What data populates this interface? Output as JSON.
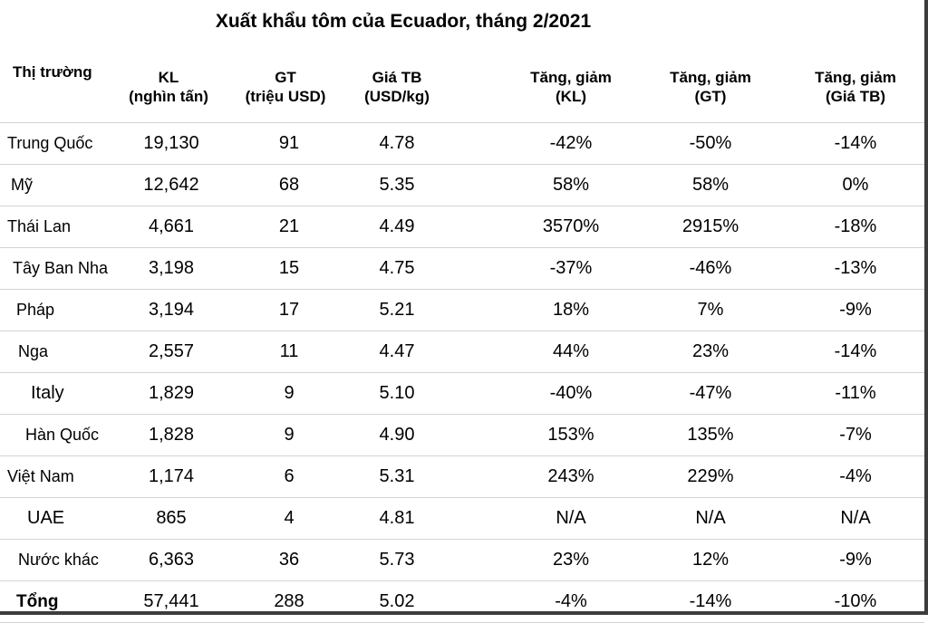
{
  "title": "Xuất khẩu tôm của Ecuador, tháng 2/2021",
  "headers": [
    [
      "Thị trường",
      ""
    ],
    [
      "KL",
      "(nghìn tấn)"
    ],
    [
      "GT",
      "(triệu USD)"
    ],
    [
      "Giá TB",
      "(USD/kg)"
    ],
    [
      "Tăng, giảm",
      "(KL)"
    ],
    [
      "Tăng, giảm",
      "(GT)"
    ],
    [
      "Tăng, giảm",
      "(Giá TB)"
    ]
  ],
  "rows": [
    {
      "market": "Trung Quốc",
      "kl": "19,130",
      "gt": "91",
      "gia": "4.78",
      "d_kl": "-42%",
      "d_gt": "-50%",
      "d_gia": "-14%"
    },
    {
      "market": "Mỹ",
      "kl": "12,642",
      "gt": "68",
      "gia": "5.35",
      "d_kl": "58%",
      "d_gt": "58%",
      "d_gia": "0%"
    },
    {
      "market": "Thái Lan",
      "kl": "4,661",
      "gt": "21",
      "gia": "4.49",
      "d_kl": "3570%",
      "d_gt": "2915%",
      "d_gia": "-18%"
    },
    {
      "market": "Tây Ban Nha",
      "kl": "3,198",
      "gt": "15",
      "gia": "4.75",
      "d_kl": "-37%",
      "d_gt": "-46%",
      "d_gia": "-13%"
    },
    {
      "market": "Pháp",
      "kl": "3,194",
      "gt": "17",
      "gia": "5.21",
      "d_kl": "18%",
      "d_gt": "7%",
      "d_gia": "-9%"
    },
    {
      "market": "Nga",
      "kl": "2,557",
      "gt": "11",
      "gia": "4.47",
      "d_kl": "44%",
      "d_gt": "23%",
      "d_gia": "-14%"
    },
    {
      "market": "Italy",
      "kl": "1,829",
      "gt": "9",
      "gia": "5.10",
      "d_kl": "-40%",
      "d_gt": "-47%",
      "d_gia": "-11%"
    },
    {
      "market": "Hàn Quốc",
      "kl": "1,828",
      "gt": "9",
      "gia": "4.90",
      "d_kl": "153%",
      "d_gt": "135%",
      "d_gia": "-7%"
    },
    {
      "market": "Việt Nam",
      "kl": "1,174",
      "gt": "6",
      "gia": "5.31",
      "d_kl": "243%",
      "d_gt": "229%",
      "d_gia": "-4%"
    },
    {
      "market": "UAE",
      "kl": "865",
      "gt": "4",
      "gia": "4.81",
      "d_kl": "N/A",
      "d_gt": "N/A",
      "d_gia": "N/A"
    },
    {
      "market": "Nước khác",
      "kl": "6,363",
      "gt": "36",
      "gia": "5.73",
      "d_kl": "23%",
      "d_gt": "12%",
      "d_gia": "-9%"
    }
  ],
  "total": {
    "market": "Tổng",
    "kl": "57,441",
    "gt": "288",
    "gia": "5.02",
    "d_kl": "-4%",
    "d_gt": "-14%",
    "d_gia": "-10%"
  }
}
